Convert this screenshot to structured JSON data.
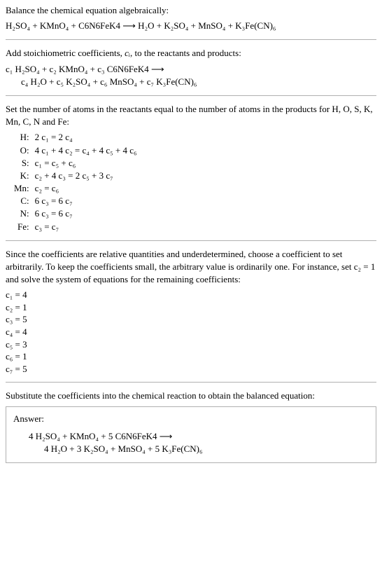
{
  "title": "Balance the chemical equation algebraically:",
  "main_equation": "H₂SO₄ + KMnO₄ + C6N6FeK4 ⟶ H₂O + K₂SO₄ + MnSO₄ + K₃Fe(CN)₆",
  "stoich_intro_a": "Add stoichiometric coefficients, ",
  "stoich_intro_ci": "cᵢ",
  "stoich_intro_b": ", to the reactants and products:",
  "stoich_line1": "c₁ H₂SO₄ + c₂ KMnO₄ + c₃ C6N6FeK4 ⟶",
  "stoich_line2": "c₄ H₂O + c₅ K₂SO₄ + c₆ MnSO₄ + c₇ K₃Fe(CN)₆",
  "atoms_intro": "Set the number of atoms in the reactants equal to the number of atoms in the products for H, O, S, K, Mn, C, N and Fe:",
  "balances": [
    {
      "el": "H:",
      "eq": "2 c₁ = 2 c₄"
    },
    {
      "el": "O:",
      "eq": "4 c₁ + 4 c₂ = c₄ + 4 c₅ + 4 c₆"
    },
    {
      "el": "S:",
      "eq": "c₁ = c₅ + c₆"
    },
    {
      "el": "K:",
      "eq": "c₂ + 4 c₃ = 2 c₅ + 3 c₇"
    },
    {
      "el": "Mn:",
      "eq": "c₂ = c₆"
    },
    {
      "el": "C:",
      "eq": "6 c₃ = 6 c₇"
    },
    {
      "el": "N:",
      "eq": "6 c₃ = 6 c₇"
    },
    {
      "el": "Fe:",
      "eq": "c₃ = c₇"
    }
  ],
  "choose_intro": "Since the coefficients are relative quantities and underdetermined, choose a coefficient to set arbitrarily. To keep the coefficients small, the arbitrary value is ordinarily one. For instance, set c₂ = 1 and solve the system of equations for the remaining coefficients:",
  "coeffs": [
    "c₁ = 4",
    "c₂ = 1",
    "c₃ = 5",
    "c₄ = 4",
    "c₅ = 3",
    "c₆ = 1",
    "c₇ = 5"
  ],
  "subst_intro": "Substitute the coefficients into the chemical reaction to obtain the balanced equation:",
  "answer_label": "Answer:",
  "answer_line1": "4 H₂SO₄ + KMnO₄ + 5 C6N6FeK4 ⟶",
  "answer_line2": "4 H₂O + 3 K₂SO₄ + MnSO₄ + 5 K₃Fe(CN)₆"
}
